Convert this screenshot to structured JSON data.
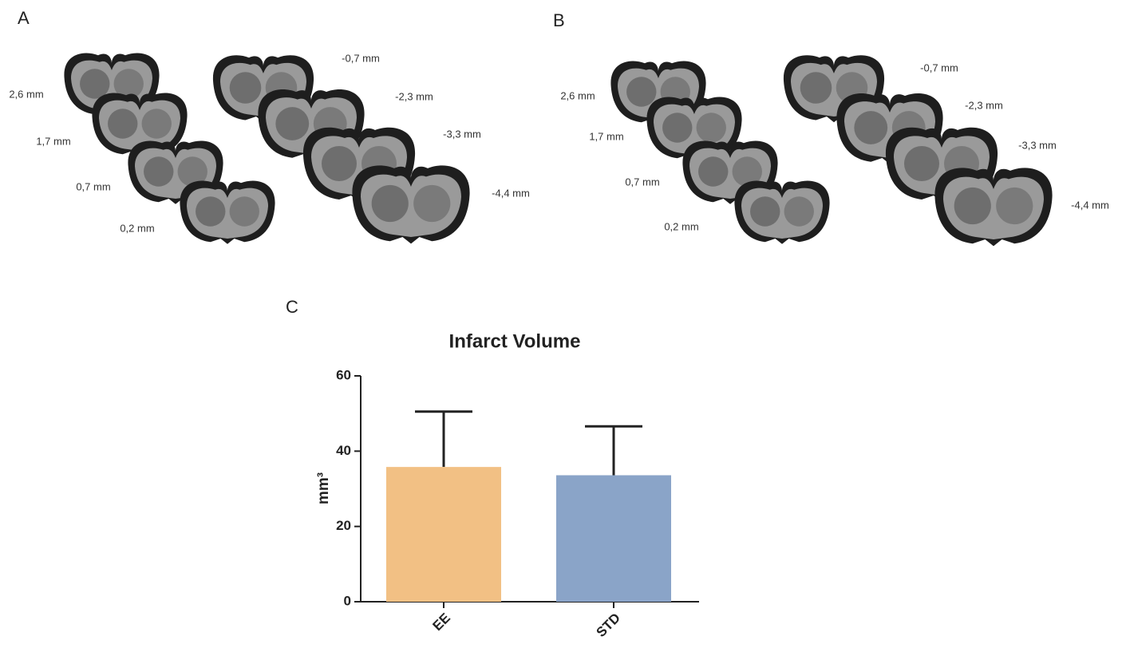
{
  "panels": {
    "A": {
      "label": "A",
      "slices": [
        "2,6 mm",
        "1,7 mm",
        "0,7 mm",
        "0,2 mm",
        "-0,7 mm",
        "-2,3 mm",
        "-3,3 mm",
        "-4,4 mm"
      ]
    },
    "B": {
      "label": "B",
      "slices": [
        "2,6 mm",
        "1,7 mm",
        "0,7 mm",
        "0,2 mm",
        "-0,7 mm",
        "-2,3 mm",
        "-3,3 mm",
        "-4,4 mm"
      ]
    },
    "C": {
      "label": "C"
    }
  },
  "chart_data": {
    "type": "bar",
    "title": "Infarct Volume",
    "y_label": "mm³",
    "categories": [
      "EE",
      "STD"
    ],
    "values": [
      35.8,
      33.6
    ],
    "errors": [
      14.7,
      13.0
    ],
    "colors": [
      "#f2c084",
      "#8aa4c8"
    ],
    "ylim": [
      0,
      60
    ],
    "yticks": [
      0,
      20,
      40,
      60
    ]
  }
}
